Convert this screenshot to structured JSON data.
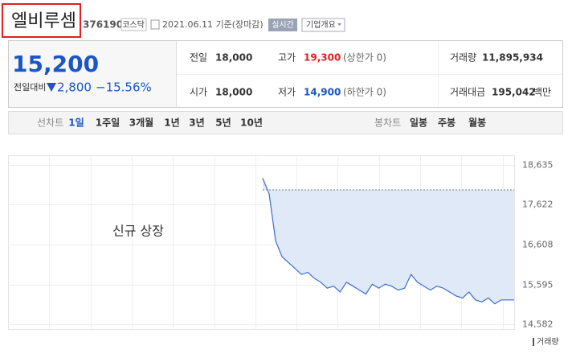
{
  "header": {
    "name": "엘비루셈",
    "code": "376190",
    "market": "코스닥",
    "date": "2021.06.11 기준(장마감)",
    "realtime": "실시간",
    "company": "기업개요"
  },
  "summary": {
    "price": "15,200",
    "change_label": "전일대비",
    "change": "2,800",
    "change_pct": "−15.56%",
    "prev_label": "전일",
    "prev_close": {
      "value": 18000,
      "label": "18,000"
    },
    "high_label": "고가",
    "high": "19,300",
    "high_note": "(상한가 0)",
    "volume_label": "거래량",
    "volume": "11,895,934",
    "open_label": "시가",
    "open": "18,000",
    "low_label": "저가",
    "low": "14,900",
    "low_note": "(하한가 0)",
    "amount_label": "거래대금",
    "amount": "195,042",
    "amount_unit": "백만"
  },
  "tabs": {
    "line_label": "선차트",
    "line": [
      "1일",
      "1주일",
      "3개월",
      "1년",
      "3년",
      "5년",
      "10년"
    ],
    "candle_label": "봉차트",
    "candle": [
      "일봉",
      "주봉",
      "월봉"
    ]
  },
  "chart_data": {
    "type": "line",
    "annotation": "신규 상장",
    "legend": "거래량",
    "color": "#3d6ecf",
    "categories": [
      null,
      null,
      null,
      null,
      null,
      null,
      null,
      null,
      null,
      null,
      null,
      null,
      null,
      null,
      null,
      null,
      null,
      null,
      null,
      null,
      null,
      null,
      null,
      null,
      null,
      null,
      null,
      null,
      null,
      null,
      null,
      null,
      null,
      null,
      null,
      null,
      null,
      null,
      null,
      null
    ],
    "values": [
      18300,
      17900,
      16700,
      16300,
      16150,
      16000,
      15850,
      15900,
      15750,
      15650,
      15500,
      15550,
      15400,
      15650,
      15550,
      15450,
      15350,
      15600,
      15500,
      15600,
      15550,
      15450,
      15500,
      15850,
      15650,
      15550,
      15450,
      15550,
      15500,
      15400,
      15300,
      15250,
      15400,
      15200,
      15150,
      15250,
      15100,
      15200,
      15200,
      15200
    ],
    "ylim": [
      14582,
      18635
    ],
    "yticks": [
      {
        "value": 14582,
        "label": "14,582"
      },
      {
        "value": 15595,
        "label": "15,595"
      },
      {
        "value": 16608,
        "label": "16,608"
      },
      {
        "value": 17622,
        "label": "17,622"
      },
      {
        "value": 18635,
        "label": "18,635"
      }
    ]
  }
}
